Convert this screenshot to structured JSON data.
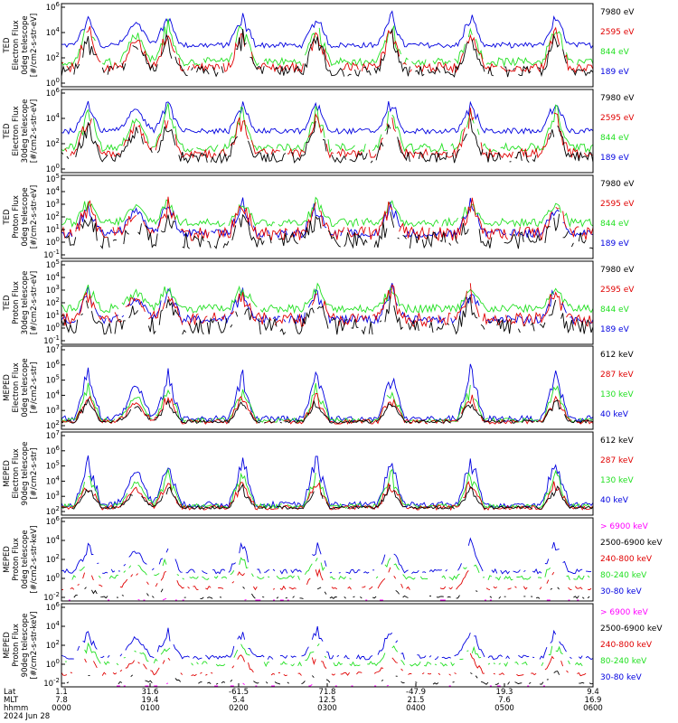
{
  "colors": {
    "black": "#000000",
    "red": "#e00000",
    "green": "#22e022",
    "blue": "#0000e0",
    "magenta": "#ff00ff"
  },
  "chart_data": [
    {
      "type": "line",
      "ylabel_lines": [
        "TED",
        "Electron Flux",
        "0deg telescope",
        "[#/cm2-s-str-eV]"
      ],
      "yticks": [
        "10^6",
        "10^4",
        "10^2",
        "10^0"
      ],
      "ylim_exp": [
        0,
        6
      ],
      "series": [
        {
          "name": "7980 eV",
          "color": "black"
        },
        {
          "name": "2595 eV",
          "color": "red"
        },
        {
          "name": "844 eV",
          "color": "green"
        },
        {
          "name": "189 eV",
          "color": "blue"
        }
      ]
    },
    {
      "type": "line",
      "ylabel_lines": [
        "TED",
        "Electron Flux",
        "30deg telescope",
        "[#/cm2-s-str-eV]"
      ],
      "yticks": [
        "10^6",
        "10^4",
        "10^2",
        "10^0"
      ],
      "ylim_exp": [
        0,
        6
      ],
      "series": [
        {
          "name": "7980 eV",
          "color": "black"
        },
        {
          "name": "2595 eV",
          "color": "red"
        },
        {
          "name": "844 eV",
          "color": "green"
        },
        {
          "name": "189 eV",
          "color": "blue"
        }
      ]
    },
    {
      "type": "line",
      "ylabel_lines": [
        "TED",
        "Proton Flux",
        "0deg telescope",
        "[#/cm2-s-str-eV]"
      ],
      "yticks": [
        "10^5",
        "10^4",
        "10^3",
        "10^2",
        "10^1",
        "10^0",
        "10^-1"
      ],
      "ylim_exp": [
        -1,
        5
      ],
      "series": [
        {
          "name": "7980 eV",
          "color": "black"
        },
        {
          "name": "2595 eV",
          "color": "red"
        },
        {
          "name": "844 eV",
          "color": "green"
        },
        {
          "name": "189 eV",
          "color": "blue"
        }
      ]
    },
    {
      "type": "line",
      "ylabel_lines": [
        "TED",
        "Proton Flux",
        "30deg telescope",
        "[#/cm2-s-str-eV]"
      ],
      "yticks": [
        "10^5",
        "10^4",
        "10^3",
        "10^2",
        "10^1",
        "10^0",
        "10^-1"
      ],
      "ylim_exp": [
        -1,
        5
      ],
      "series": [
        {
          "name": "7980 eV",
          "color": "black"
        },
        {
          "name": "2595 eV",
          "color": "red"
        },
        {
          "name": "844 eV",
          "color": "green"
        },
        {
          "name": "189 eV",
          "color": "blue"
        }
      ]
    },
    {
      "type": "line",
      "ylabel_lines": [
        "MEPED",
        "Electron Flux",
        "0deg telescope",
        "[#/cm2-s-str]"
      ],
      "yticks": [
        "10^7",
        "10^6",
        "10^5",
        "10^4",
        "10^3",
        "10^2"
      ],
      "ylim_exp": [
        1.5,
        7
      ],
      "series": [
        {
          "name": "612 keV",
          "color": "black"
        },
        {
          "name": "287 keV",
          "color": "red"
        },
        {
          "name": "130 keV",
          "color": "green"
        },
        {
          "name": "40 keV",
          "color": "blue"
        }
      ]
    },
    {
      "type": "line",
      "ylabel_lines": [
        "MEPED",
        "Electron Flux",
        "90deg telescope",
        "[#/cm2-s-str]"
      ],
      "yticks": [
        "10^7",
        "10^6",
        "10^5",
        "10^4",
        "10^3",
        "10^2"
      ],
      "ylim_exp": [
        1.5,
        7
      ],
      "series": [
        {
          "name": "612 keV",
          "color": "black"
        },
        {
          "name": "287 keV",
          "color": "red"
        },
        {
          "name": "130 keV",
          "color": "green"
        },
        {
          "name": "40 keV",
          "color": "blue"
        }
      ]
    },
    {
      "type": "line",
      "ylabel_lines": [
        "MEPED",
        "Proton Flux",
        "0deg telescope",
        "[#/cm2-s-str-keV]"
      ],
      "yticks": [
        "10^6",
        "10^4",
        "10^2",
        "10^0",
        "10^-2"
      ],
      "ylim_exp": [
        -3,
        6
      ],
      "series": [
        {
          "name": "> 6900 keV",
          "color": "magenta"
        },
        {
          "name": "2500-6900 keV",
          "color": "black"
        },
        {
          "name": "240-800 keV",
          "color": "red"
        },
        {
          "name": "80-240 keV",
          "color": "green"
        },
        {
          "name": "30-80 keV",
          "color": "blue"
        }
      ]
    },
    {
      "type": "line",
      "ylabel_lines": [
        "MEPED",
        "Proton Flux",
        "90deg telescope",
        "[#/cm2-s-str-keV]"
      ],
      "yticks": [
        "10^6",
        "10^4",
        "10^2",
        "10^0",
        "10^-2"
      ],
      "ylim_exp": [
        -3,
        6
      ],
      "series": [
        {
          "name": "> 6900 keV",
          "color": "magenta"
        },
        {
          "name": "2500-6900 keV",
          "color": "black"
        },
        {
          "name": "240-800 keV",
          "color": "red"
        },
        {
          "name": "80-240 keV",
          "color": "green"
        },
        {
          "name": "30-80 keV",
          "color": "blue"
        }
      ]
    }
  ],
  "x_axis": {
    "row_labels": [
      "Lat",
      "MLT",
      "hhmm",
      "2024 Jun 28"
    ],
    "ticks": [
      {
        "lat": "1.1",
        "mlt": "7.8",
        "hhmm": "0000"
      },
      {
        "lat": "31.6",
        "mlt": "19.4",
        "hhmm": "0100"
      },
      {
        "lat": "-61.5",
        "mlt": "5.4",
        "hhmm": "0200"
      },
      {
        "lat": "71.8",
        "mlt": "12.5",
        "hhmm": "0300"
      },
      {
        "lat": "-47.9",
        "mlt": "21.5",
        "hhmm": "0400"
      },
      {
        "lat": "19.3",
        "mlt": "7.6",
        "hhmm": "0500"
      },
      {
        "lat": "9.4",
        "mlt": "16.9",
        "hhmm": "0600"
      }
    ]
  }
}
